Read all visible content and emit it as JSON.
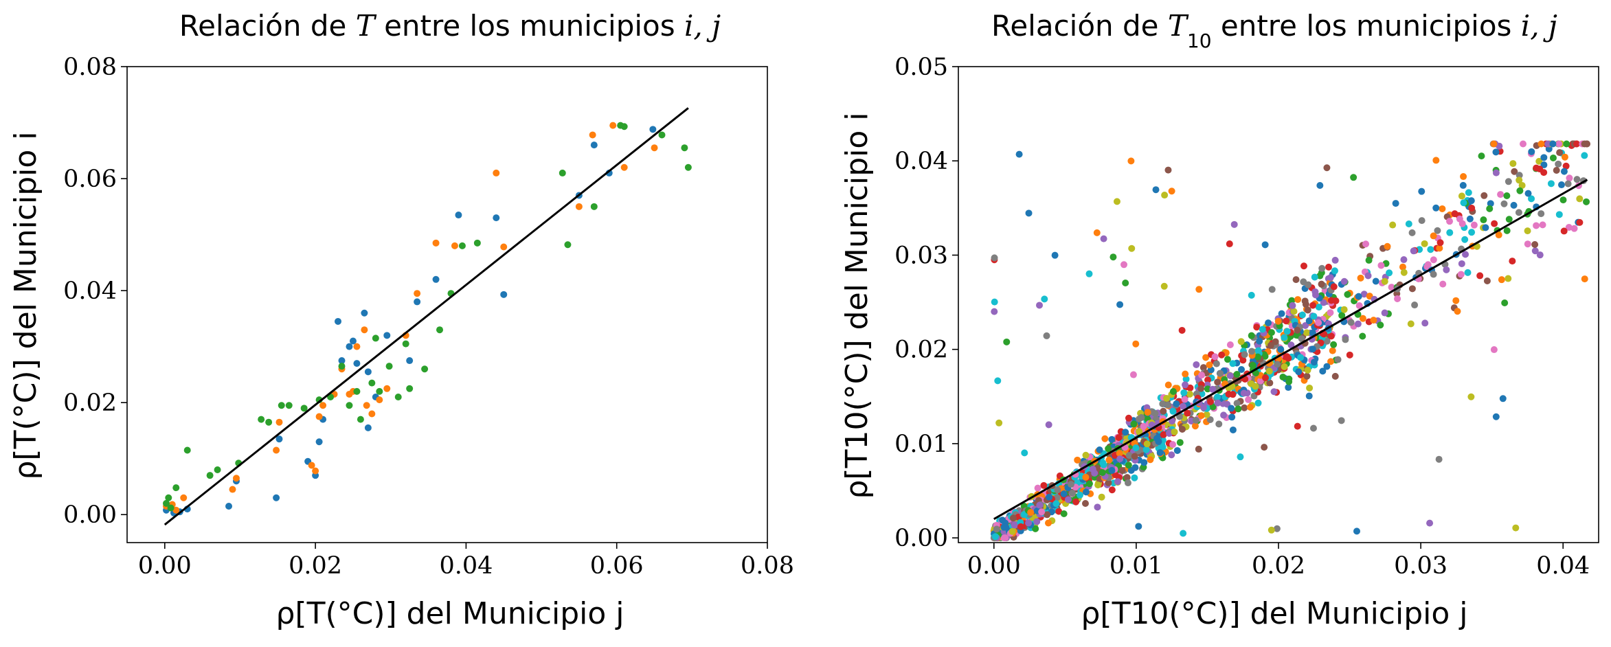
{
  "chart_data": [
    {
      "type": "scatter",
      "title": "Relación de T entre los municipios i, j",
      "title_parts": {
        "prefix": "Relación de ",
        "var": "T",
        "sub": "",
        "suffix": " entre los municipios ",
        "indices": "i, j"
      },
      "xlabel": "ρ[T(°C)] del Municipio j",
      "ylabel": "ρ[T(°C)] del Municipio i",
      "xlim": [
        -0.005,
        0.08
      ],
      "ylim": [
        -0.005,
        0.08
      ],
      "xticks": [
        0.0,
        0.02,
        0.04,
        0.06,
        0.08
      ],
      "xtick_labels": [
        "0.00",
        "0.02",
        "0.04",
        "0.06",
        "0.08"
      ],
      "yticks": [
        0.0,
        0.02,
        0.04,
        0.06,
        0.08
      ],
      "ytick_labels": [
        "0.00",
        "0.02",
        "0.04",
        "0.06",
        "0.08"
      ],
      "grid": false,
      "fit_line": {
        "x": [
          0.0,
          0.0695
        ],
        "y": [
          -0.0018,
          0.0726
        ]
      },
      "series": [
        {
          "color": "#1f77b4",
          "points": [
            [
              0.0002,
              0.0008
            ],
            [
              0.0012,
              0.0003
            ],
            [
              0.002,
              0.0005
            ],
            [
              0.003,
              0.001
            ],
            [
              0.0085,
              0.0015
            ],
            [
              0.0095,
              0.006
            ],
            [
              0.0148,
              0.003
            ],
            [
              0.0152,
              0.0135
            ],
            [
              0.019,
              0.0095
            ],
            [
              0.02,
              0.007
            ],
            [
              0.0205,
              0.013
            ],
            [
              0.021,
              0.017
            ],
            [
              0.023,
              0.0345
            ],
            [
              0.0235,
              0.0275
            ],
            [
              0.0245,
              0.03
            ],
            [
              0.025,
              0.031
            ],
            [
              0.0255,
              0.027
            ],
            [
              0.0265,
              0.036
            ],
            [
              0.027,
              0.0255
            ],
            [
              0.027,
              0.0155
            ],
            [
              0.028,
              0.021
            ],
            [
              0.0295,
              0.032
            ],
            [
              0.0325,
              0.0275
            ],
            [
              0.0335,
              0.038
            ],
            [
              0.036,
              0.042
            ],
            [
              0.039,
              0.0535
            ],
            [
              0.044,
              0.053
            ],
            [
              0.045,
              0.0393
            ],
            [
              0.055,
              0.057
            ],
            [
              0.057,
              0.066
            ],
            [
              0.059,
              0.061
            ],
            [
              0.0648,
              0.0688
            ]
          ]
        },
        {
          "color": "#ff7f0e",
          "points": [
            [
              0.0002,
              0.0015
            ],
            [
              0.001,
              0.0018
            ],
            [
              0.0015,
              0.0008
            ],
            [
              0.0025,
              0.003
            ],
            [
              0.009,
              0.0045
            ],
            [
              0.0095,
              0.0065
            ],
            [
              0.0148,
              0.0115
            ],
            [
              0.0152,
              0.0165
            ],
            [
              0.0195,
              0.0088
            ],
            [
              0.02,
              0.0078
            ],
            [
              0.0205,
              0.0175
            ],
            [
              0.021,
              0.0195
            ],
            [
              0.0225,
              0.0215
            ],
            [
              0.0235,
              0.026
            ],
            [
              0.0245,
              0.0215
            ],
            [
              0.025,
              0.022
            ],
            [
              0.0255,
              0.03
            ],
            [
              0.0265,
              0.033
            ],
            [
              0.0268,
              0.0195
            ],
            [
              0.0275,
              0.018
            ],
            [
              0.0285,
              0.0205
            ],
            [
              0.0295,
              0.0225
            ],
            [
              0.032,
              0.032
            ],
            [
              0.0335,
              0.0395
            ],
            [
              0.036,
              0.0485
            ],
            [
              0.0385,
              0.048
            ],
            [
              0.044,
              0.061
            ],
            [
              0.045,
              0.0478
            ],
            [
              0.055,
              0.055
            ],
            [
              0.0568,
              0.0678
            ],
            [
              0.0595,
              0.0695
            ],
            [
              0.061,
              0.062
            ],
            [
              0.065,
              0.0655
            ]
          ]
        },
        {
          "color": "#2ca02c",
          "points": [
            [
              0.0002,
              0.002
            ],
            [
              0.0005,
              0.003
            ],
            [
              0.0008,
              0.0012
            ],
            [
              0.0015,
              0.0048
            ],
            [
              0.003,
              0.0115
            ],
            [
              0.006,
              0.007
            ],
            [
              0.007,
              0.008
            ],
            [
              0.0098,
              0.0092
            ],
            [
              0.0128,
              0.017
            ],
            [
              0.0138,
              0.0165
            ],
            [
              0.0155,
              0.0195
            ],
            [
              0.0165,
              0.0195
            ],
            [
              0.0185,
              0.019
            ],
            [
              0.0205,
              0.0205
            ],
            [
              0.022,
              0.021
            ],
            [
              0.0235,
              0.0265
            ],
            [
              0.0245,
              0.0195
            ],
            [
              0.0255,
              0.022
            ],
            [
              0.026,
              0.017
            ],
            [
              0.0275,
              0.0235
            ],
            [
              0.028,
              0.0315
            ],
            [
              0.0285,
              0.022
            ],
            [
              0.0298,
              0.0265
            ],
            [
              0.031,
              0.021
            ],
            [
              0.032,
              0.0305
            ],
            [
              0.0325,
              0.0225
            ],
            [
              0.0345,
              0.026
            ],
            [
              0.0365,
              0.033
            ],
            [
              0.038,
              0.0395
            ],
            [
              0.0395,
              0.048
            ],
            [
              0.0415,
              0.0485
            ],
            [
              0.0528,
              0.061
            ],
            [
              0.0535,
              0.0482
            ],
            [
              0.057,
              0.055
            ],
            [
              0.0605,
              0.0695
            ],
            [
              0.061,
              0.0693
            ],
            [
              0.066,
              0.0678
            ],
            [
              0.069,
              0.0655
            ],
            [
              0.0695,
              0.062
            ]
          ]
        }
      ]
    },
    {
      "type": "scatter",
      "title": "Relación de T10 entre los municipios i, j",
      "title_parts": {
        "prefix": "Relación de ",
        "var": "T",
        "sub": "10",
        "suffix": " entre los municipios ",
        "indices": "i, j"
      },
      "xlabel": "ρ[T10(°C)] del Municipio j",
      "ylabel": "ρ[T10(°C)] del Municipio i",
      "xlim": [
        -0.0025,
        0.0425
      ],
      "ylim": [
        -0.0005,
        0.05
      ],
      "xticks": [
        0.0,
        0.01,
        0.02,
        0.03,
        0.04
      ],
      "xtick_labels": [
        "0.00",
        "0.01",
        "0.02",
        "0.03",
        "0.04"
      ],
      "yticks": [
        0.0,
        0.01,
        0.02,
        0.03,
        0.04,
        0.05
      ],
      "ytick_labels": [
        "0.00",
        "0.01",
        "0.02",
        "0.03",
        "0.04",
        "0.05"
      ],
      "grid": false,
      "fit_line": {
        "x": [
          0.0,
          0.0417
        ],
        "y": [
          0.002,
          0.038
        ]
      },
      "palette": [
        "#1f77b4",
        "#ff7f0e",
        "#2ca02c",
        "#d62728",
        "#9467bd",
        "#8c564b",
        "#e377c2",
        "#7f7f7f",
        "#bcbd22",
        "#17becf"
      ],
      "point_count": 1500,
      "x_max": 0.0417,
      "y_max": 0.0418
    }
  ]
}
